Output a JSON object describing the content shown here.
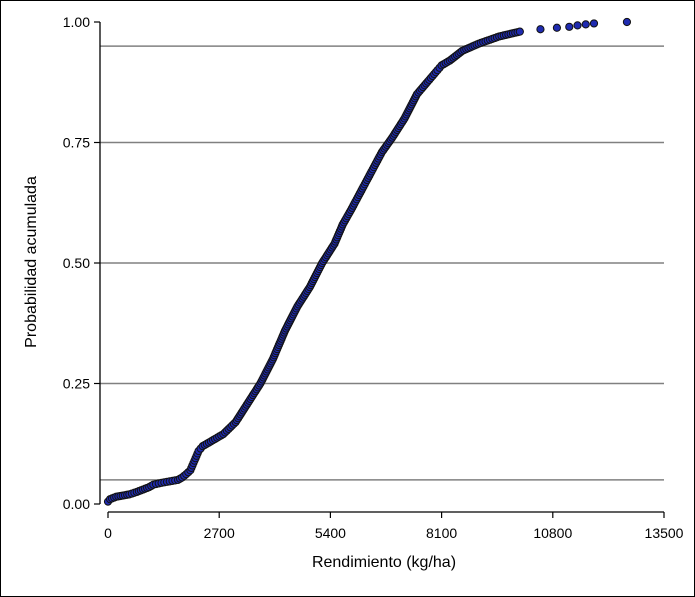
{
  "chart_data": {
    "type": "scatter",
    "title": "",
    "xlabel": "Rendimiento (kg/ha)",
    "ylabel": "Probabilidad acumulada",
    "xlim": [
      0,
      13500
    ],
    "ylim": [
      0,
      1
    ],
    "x_ticks": [
      "0",
      "2700",
      "5400",
      "8100",
      "10800",
      "13500"
    ],
    "y_ticks": [
      "0.00",
      "0.25",
      "0.50",
      "0.75",
      "1.00"
    ],
    "reference_lines_y": [
      0.05,
      0.25,
      0.5,
      0.75,
      0.95
    ],
    "grid": false,
    "legend": "none",
    "colors": {
      "marker_fill": "#1f2bb0",
      "marker_edge": "#111111",
      "reference_line": "#808080",
      "axis": "#000000"
    },
    "series": [
      {
        "values_x": [
          0,
          50,
          200,
          520,
          700,
          850,
          1000,
          1100,
          1300,
          1500,
          1700,
          1800,
          1900,
          2000,
          2050,
          2100,
          2150,
          2200,
          2300,
          2500,
          2800,
          3100,
          3400,
          3700,
          4000,
          4300,
          4600,
          4900,
          5200,
          5500,
          5700,
          5900,
          6150,
          6400,
          6650,
          6900,
          7200,
          7500,
          7800,
          8000,
          8100,
          8300,
          8600,
          9000,
          9500,
          10000,
          10500,
          10900,
          11200,
          11400,
          11600,
          11800,
          12600
        ],
        "values_y": [
          0.005,
          0.01,
          0.015,
          0.02,
          0.025,
          0.03,
          0.035,
          0.04,
          0.044,
          0.047,
          0.05,
          0.055,
          0.062,
          0.07,
          0.08,
          0.09,
          0.1,
          0.11,
          0.12,
          0.13,
          0.145,
          0.17,
          0.21,
          0.25,
          0.3,
          0.36,
          0.41,
          0.45,
          0.5,
          0.54,
          0.58,
          0.61,
          0.65,
          0.69,
          0.73,
          0.76,
          0.8,
          0.85,
          0.88,
          0.9,
          0.91,
          0.92,
          0.94,
          0.955,
          0.97,
          0.98,
          0.985,
          0.988,
          0.99,
          0.993,
          0.995,
          0.997,
          1.0
        ]
      }
    ]
  }
}
